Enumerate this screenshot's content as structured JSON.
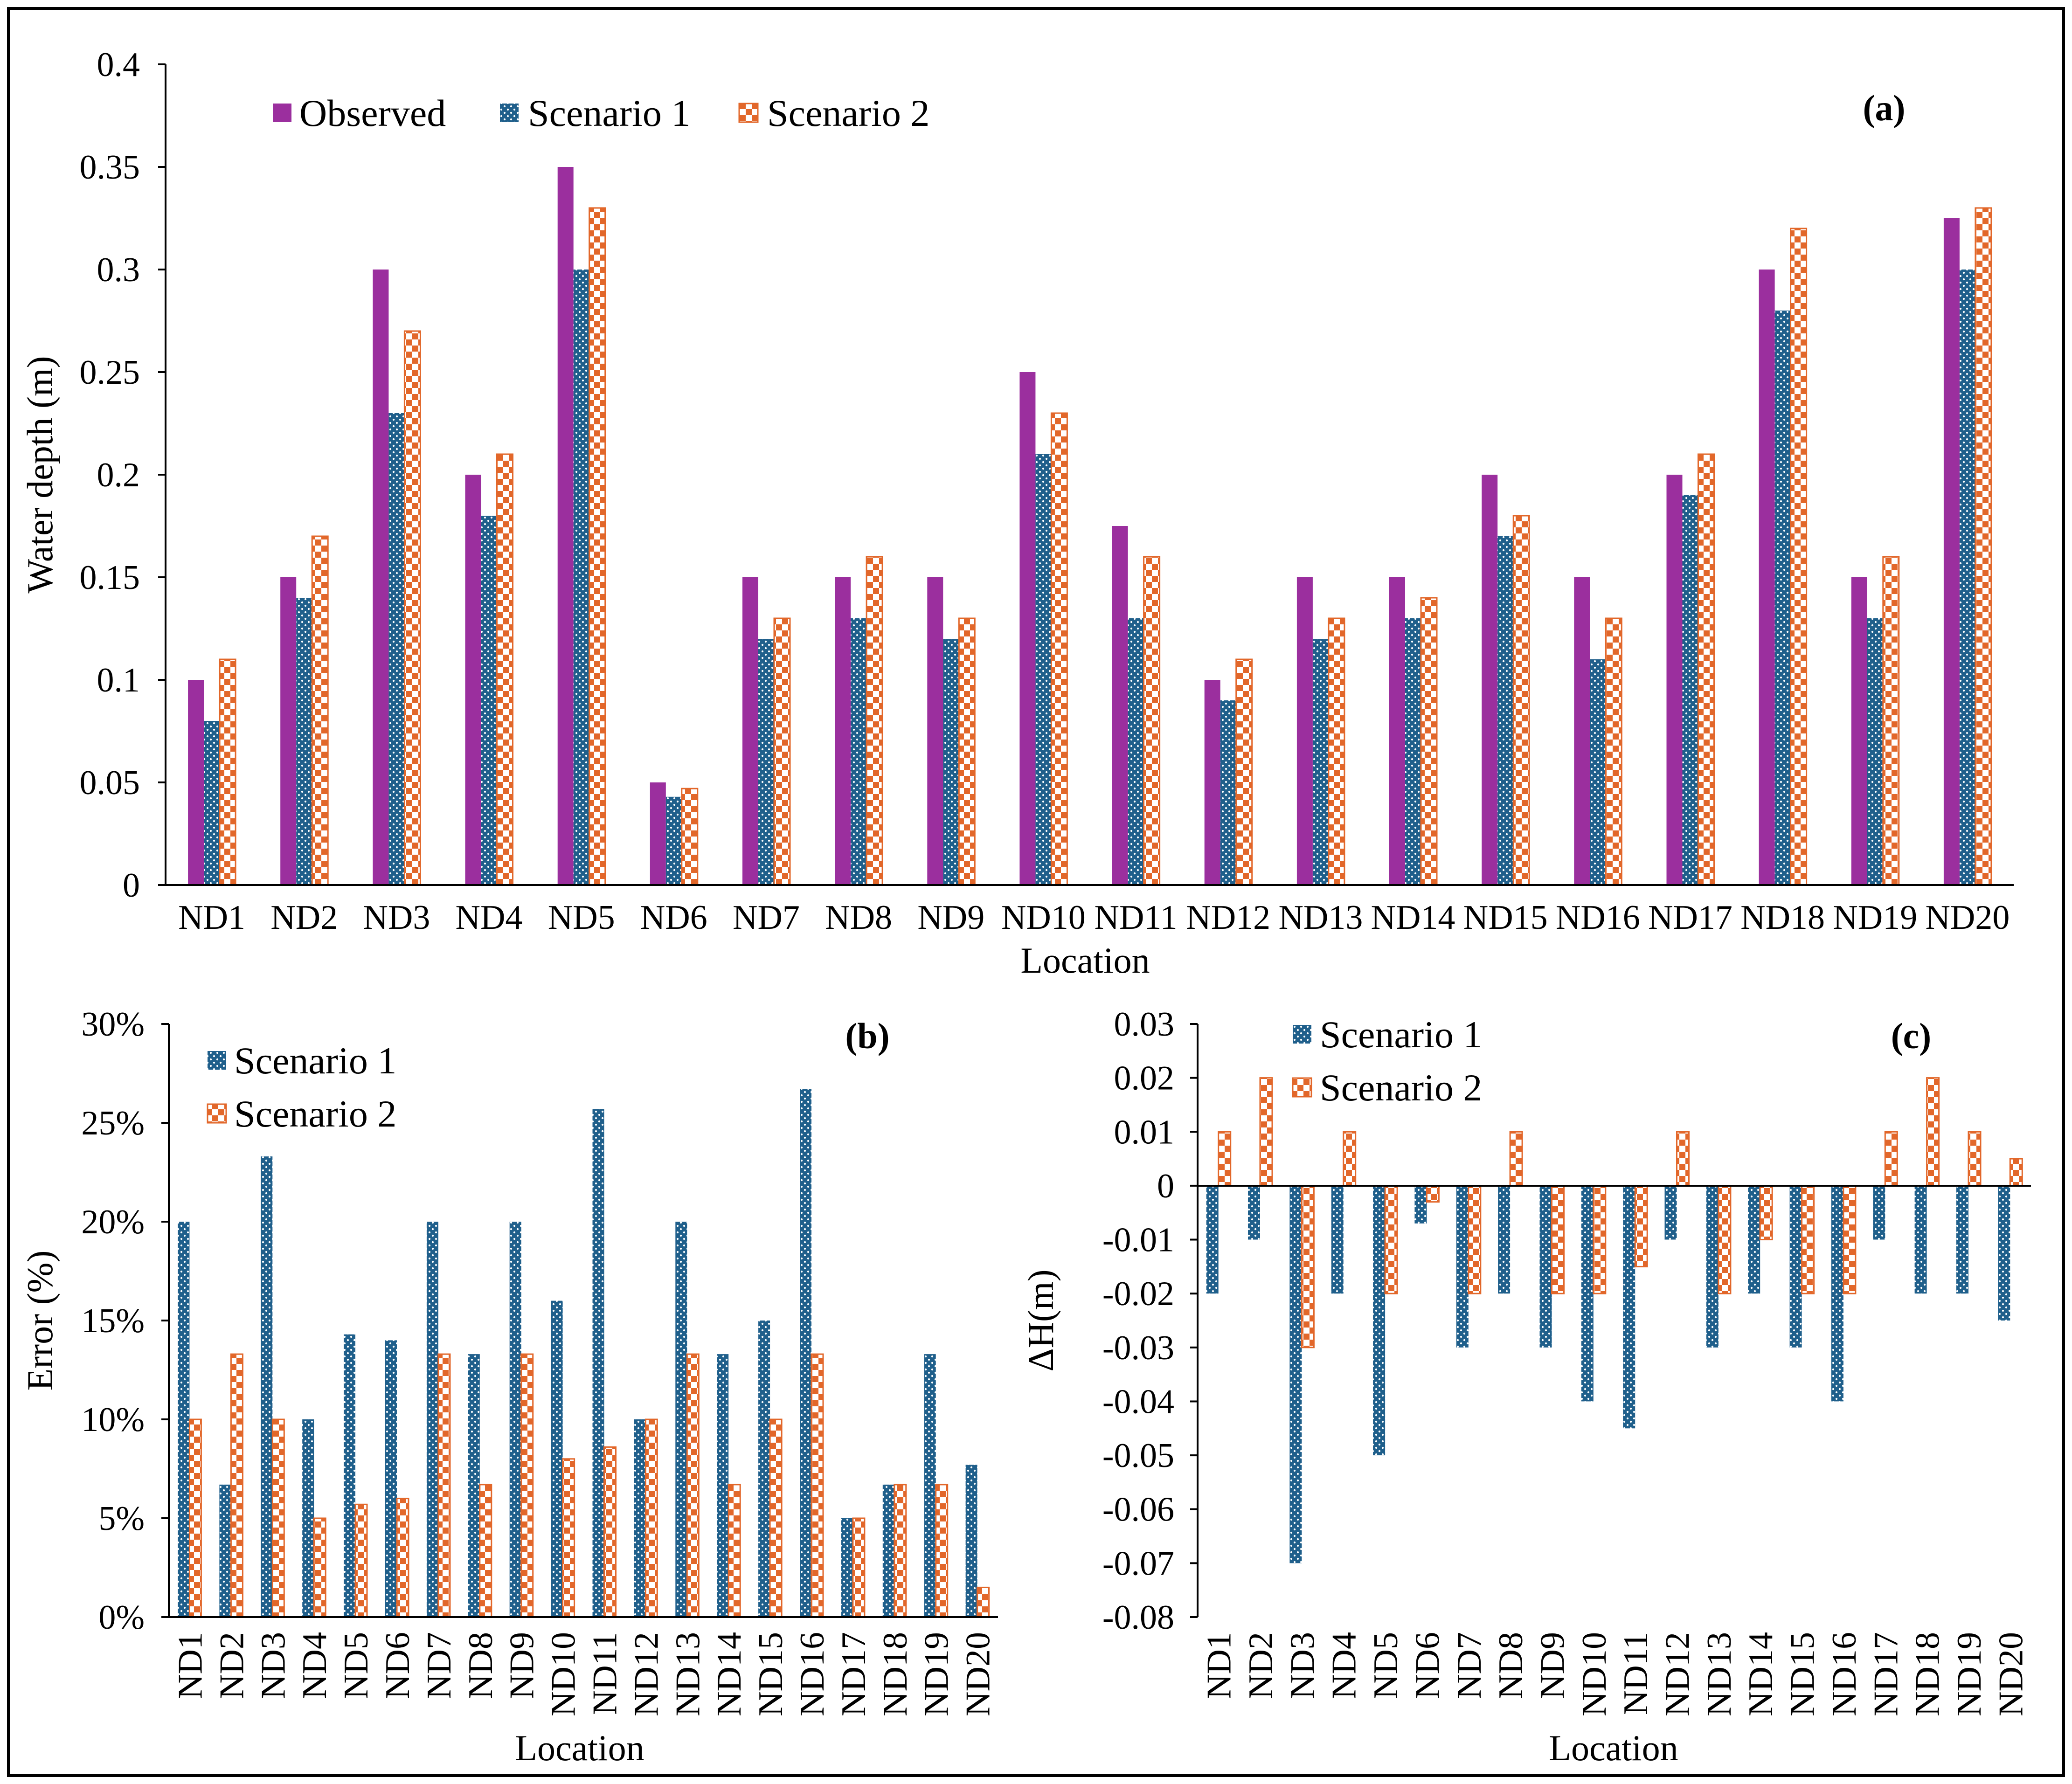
{
  "chart_data": [
    {
      "panel": "(a)",
      "type": "bar",
      "title": "",
      "xlabel": "Location",
      "ylabel": "Water depth (m)",
      "ylim": [
        0,
        0.4
      ],
      "yticks": [
        "0",
        "0.05",
        "0.1",
        "0.15",
        "0.2",
        "0.25",
        "0.3",
        "0.35",
        "0.4"
      ],
      "categories": [
        "ND1",
        "ND2",
        "ND3",
        "ND4",
        "ND5",
        "ND6",
        "ND7",
        "ND8",
        "ND9",
        "ND10",
        "ND11",
        "ND12",
        "ND13",
        "ND14",
        "ND15",
        "ND16",
        "ND17",
        "ND18",
        "ND19",
        "ND20"
      ],
      "series": [
        {
          "name": "Observed",
          "values": [
            0.1,
            0.15,
            0.3,
            0.2,
            0.35,
            0.05,
            0.15,
            0.15,
            0.15,
            0.25,
            0.175,
            0.1,
            0.15,
            0.15,
            0.2,
            0.15,
            0.2,
            0.3,
            0.15,
            0.325
          ]
        },
        {
          "name": "Scenario 1",
          "values": [
            0.08,
            0.14,
            0.23,
            0.18,
            0.3,
            0.043,
            0.12,
            0.13,
            0.12,
            0.21,
            0.13,
            0.09,
            0.12,
            0.13,
            0.17,
            0.11,
            0.19,
            0.28,
            0.13,
            0.3
          ]
        },
        {
          "name": "Scenario 2",
          "values": [
            0.11,
            0.17,
            0.27,
            0.21,
            0.33,
            0.047,
            0.13,
            0.16,
            0.13,
            0.23,
            0.16,
            0.11,
            0.13,
            0.14,
            0.18,
            0.13,
            0.21,
            0.32,
            0.16,
            0.33
          ]
        }
      ],
      "legend": "top-left",
      "grid": false
    },
    {
      "panel": "(b)",
      "type": "bar",
      "title": "",
      "xlabel": "Location",
      "ylabel": "Error (%)",
      "ylim": [
        0,
        30
      ],
      "yticks": [
        "0%",
        "5%",
        "10%",
        "15%",
        "20%",
        "25%",
        "30%"
      ],
      "categories": [
        "ND1",
        "ND2",
        "ND3",
        "ND4",
        "ND5",
        "ND6",
        "ND7",
        "ND8",
        "ND9",
        "ND10",
        "ND11",
        "ND12",
        "ND13",
        "ND14",
        "ND15",
        "ND16",
        "ND17",
        "ND18",
        "ND19",
        "ND20"
      ],
      "series": [
        {
          "name": "Scenario 1",
          "values": [
            20,
            6.7,
            23.3,
            10,
            14.3,
            14,
            20,
            13.3,
            20,
            16,
            25.7,
            10,
            20,
            13.3,
            15,
            26.7,
            5,
            6.7,
            13.3,
            7.7
          ]
        },
        {
          "name": "Scenario 2",
          "values": [
            10,
            13.3,
            10,
            5,
            5.7,
            6,
            13.3,
            6.7,
            13.3,
            8,
            8.6,
            10,
            13.3,
            6.7,
            10,
            13.3,
            5,
            6.7,
            6.7,
            1.5
          ]
        }
      ],
      "legend": "top-left",
      "grid": false
    },
    {
      "panel": "(c)",
      "type": "bar",
      "title": "",
      "xlabel": "Location",
      "ylabel": "ΔH(m)",
      "ylim": [
        -0.08,
        0.03
      ],
      "yticks": [
        "-0.08",
        "-0.07",
        "-0.06",
        "-0.05",
        "-0.04",
        "-0.03",
        "-0.02",
        "-0.01",
        "0",
        "0.01",
        "0.02",
        "0.03"
      ],
      "categories": [
        "ND1",
        "ND2",
        "ND3",
        "ND4",
        "ND5",
        "ND6",
        "ND7",
        "ND8",
        "ND9",
        "ND10",
        "ND11",
        "ND12",
        "ND13",
        "ND14",
        "ND15",
        "ND16",
        "ND17",
        "ND18",
        "ND19",
        "ND20"
      ],
      "series": [
        {
          "name": "Scenario 1",
          "values": [
            -0.02,
            -0.01,
            -0.07,
            -0.02,
            -0.05,
            -0.007,
            -0.03,
            -0.02,
            -0.03,
            -0.04,
            -0.045,
            -0.01,
            -0.03,
            -0.02,
            -0.03,
            -0.04,
            -0.01,
            -0.02,
            -0.02,
            -0.025
          ]
        },
        {
          "name": "Scenario 2",
          "values": [
            0.01,
            0.02,
            -0.03,
            0.01,
            -0.02,
            -0.003,
            -0.02,
            0.01,
            -0.02,
            -0.02,
            -0.015,
            0.01,
            -0.02,
            -0.01,
            -0.02,
            -0.02,
            0.01,
            0.02,
            0.01,
            0.005
          ]
        }
      ],
      "legend": "top-left",
      "grid": false
    }
  ],
  "colors": {
    "observed": "#9b2f9e",
    "scenario1": "#1f5f8b",
    "scenario2": "#e2672a",
    "dot": "#ffffff"
  }
}
